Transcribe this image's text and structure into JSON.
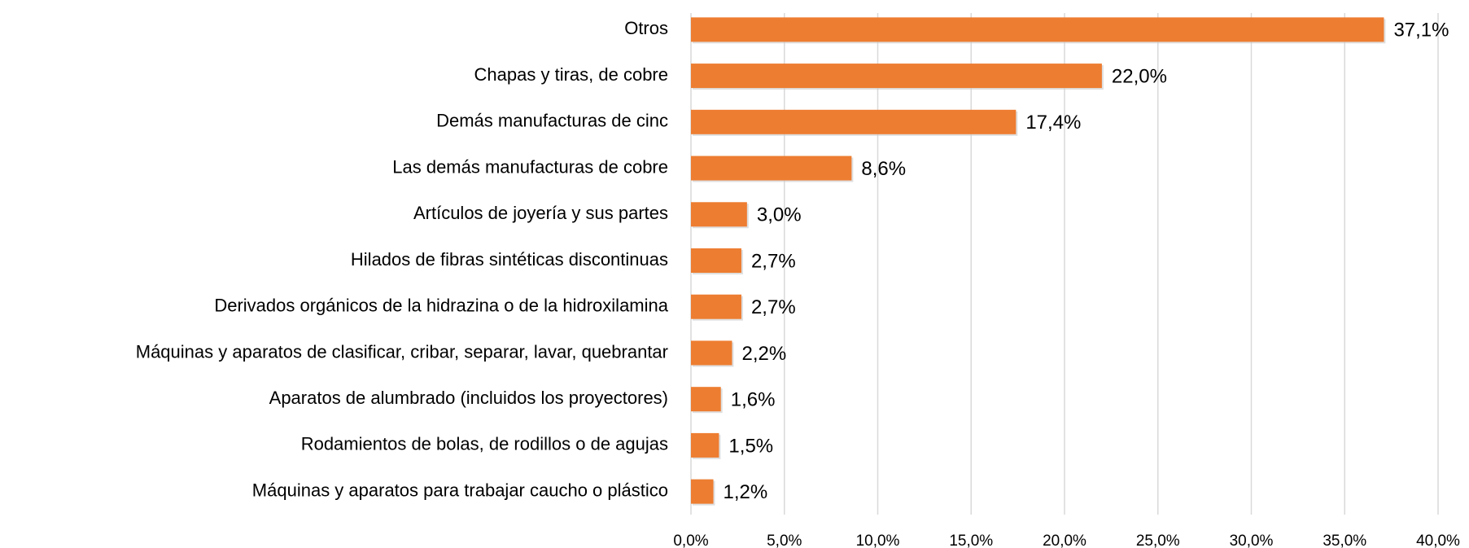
{
  "chart_data": {
    "type": "barh",
    "categories": [
      "Otros",
      "Chapas y tiras, de cobre",
      "Demás manufacturas de cinc",
      "Las demás manufacturas de cobre",
      "Artículos de joyería y sus partes",
      "Hilados de fibras sintéticas discontinuas",
      "Derivados orgánicos de la hidrazina o de la hidroxilamina",
      "Máquinas y aparatos de clasificar, cribar, separar, lavar, quebrantar",
      "Aparatos de alumbrado (incluidos los proyectores)",
      "Rodamientos de bolas, de rodillos o de agujas",
      "Máquinas y aparatos para trabajar caucho o plástico"
    ],
    "values": [
      37.1,
      22.0,
      17.4,
      8.6,
      3.0,
      2.7,
      2.7,
      2.2,
      1.6,
      1.5,
      1.2
    ],
    "value_labels": [
      "37,1%",
      "22,0%",
      "17,4%",
      "8,6%",
      "3,0%",
      "2,7%",
      "2,7%",
      "2,2%",
      "1,6%",
      "1,5%",
      "1,2%"
    ],
    "color": "#ED7D31",
    "xlim": [
      0,
      40
    ],
    "xticks": [
      {
        "value": 0,
        "label": "0,0%"
      },
      {
        "value": 5,
        "label": "5,0%"
      },
      {
        "value": 10,
        "label": "10,0%"
      },
      {
        "value": 15,
        "label": "15,0%"
      },
      {
        "value": 20,
        "label": "20,0%"
      },
      {
        "value": 25,
        "label": "25,0%"
      },
      {
        "value": 30,
        "label": "30,0%"
      },
      {
        "value": 35,
        "label": "35,0%"
      },
      {
        "value": 40,
        "label": "40,0%"
      }
    ],
    "grid": true
  }
}
